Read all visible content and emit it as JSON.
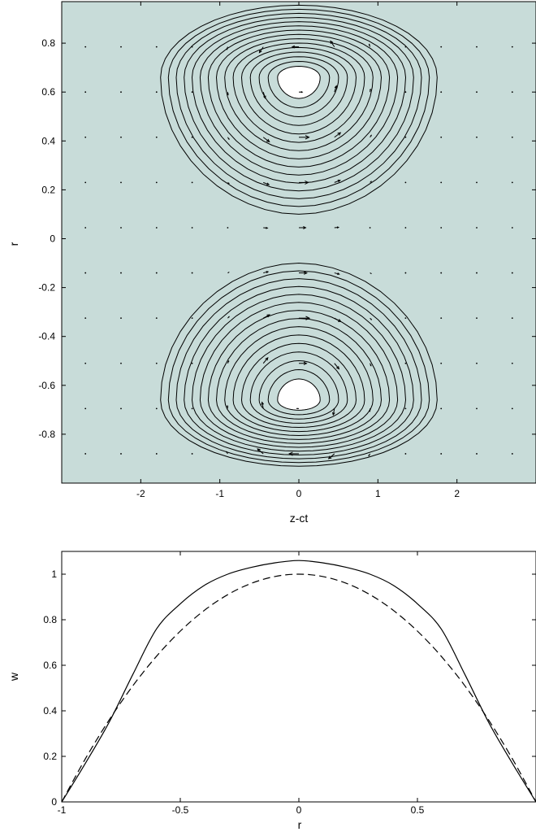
{
  "chart_data": [
    {
      "type": "contour",
      "title": "",
      "xlabel": "z-ct",
      "ylabel": "r",
      "xlim": [
        -3,
        3
      ],
      "ylim": [
        -1,
        0.97
      ],
      "xticks": [
        -2,
        -1,
        0,
        1,
        2
      ],
      "xtick_labels": [
        "-2",
        "-1",
        "0",
        "1",
        "2"
      ],
      "yticks": [
        0.8,
        0.6,
        0.4,
        0.2,
        0,
        -0.2,
        -0.4,
        -0.6,
        -0.8
      ],
      "ytick_labels": [
        "0.8",
        "0.6",
        "0.4",
        "0.2",
        "0",
        "-0.2",
        "-0.4",
        "-0.6",
        "-0.8"
      ],
      "background_color": "#c8dcd9",
      "vortex_cores": [
        {
          "z": 0,
          "r": 0.66
        },
        {
          "z": 0,
          "r": -0.66
        }
      ],
      "vortex_outer_extent": {
        "z_min": -1.75,
        "z_max": 1.75,
        "r_inner": 0.1
      },
      "contour_levels": 16,
      "quiver": {
        "z_spacing": 0.45,
        "r_spacing": 0.185,
        "direction": "flow toward +z near axis, circulating around cores"
      },
      "grid": false
    },
    {
      "type": "line",
      "title": "",
      "xlabel": "r",
      "ylabel": "w",
      "xlim": [
        -1,
        1
      ],
      "ylim": [
        0,
        1.1
      ],
      "xticks": [
        -1,
        -0.5,
        0,
        0.5
      ],
      "xtick_labels": [
        "-1",
        "-0.5",
        "0",
        "0.5"
      ],
      "yticks": [
        0,
        0.2,
        0.4,
        0.6,
        0.8,
        1
      ],
      "ytick_labels": [
        "0",
        "0.2",
        "0.4",
        "0.6",
        "0.8",
        "1"
      ],
      "series": [
        {
          "style": "solid",
          "x": [
            -1,
            -0.9,
            -0.8,
            -0.7,
            -0.6,
            -0.5,
            -0.4,
            -0.3,
            -0.2,
            -0.1,
            0,
            0.1,
            0.2,
            0.3,
            0.4,
            0.5,
            0.6,
            0.7,
            0.8,
            0.9,
            1
          ],
          "values": [
            0,
            0.17,
            0.35,
            0.56,
            0.76,
            0.87,
            0.95,
            1.0,
            1.03,
            1.05,
            1.06,
            1.05,
            1.03,
            1.0,
            0.95,
            0.87,
            0.76,
            0.56,
            0.35,
            0.17,
            0
          ]
        },
        {
          "style": "dashed",
          "x": [
            -1,
            -0.9,
            -0.8,
            -0.7,
            -0.6,
            -0.5,
            -0.4,
            -0.3,
            -0.2,
            -0.1,
            0,
            0.1,
            0.2,
            0.3,
            0.4,
            0.5,
            0.6,
            0.7,
            0.8,
            0.9,
            1
          ],
          "values": [
            0,
            0.19,
            0.36,
            0.51,
            0.64,
            0.75,
            0.84,
            0.91,
            0.96,
            0.99,
            1.0,
            0.99,
            0.96,
            0.91,
            0.84,
            0.75,
            0.64,
            0.51,
            0.36,
            0.19,
            0
          ]
        }
      ],
      "grid": false
    }
  ]
}
